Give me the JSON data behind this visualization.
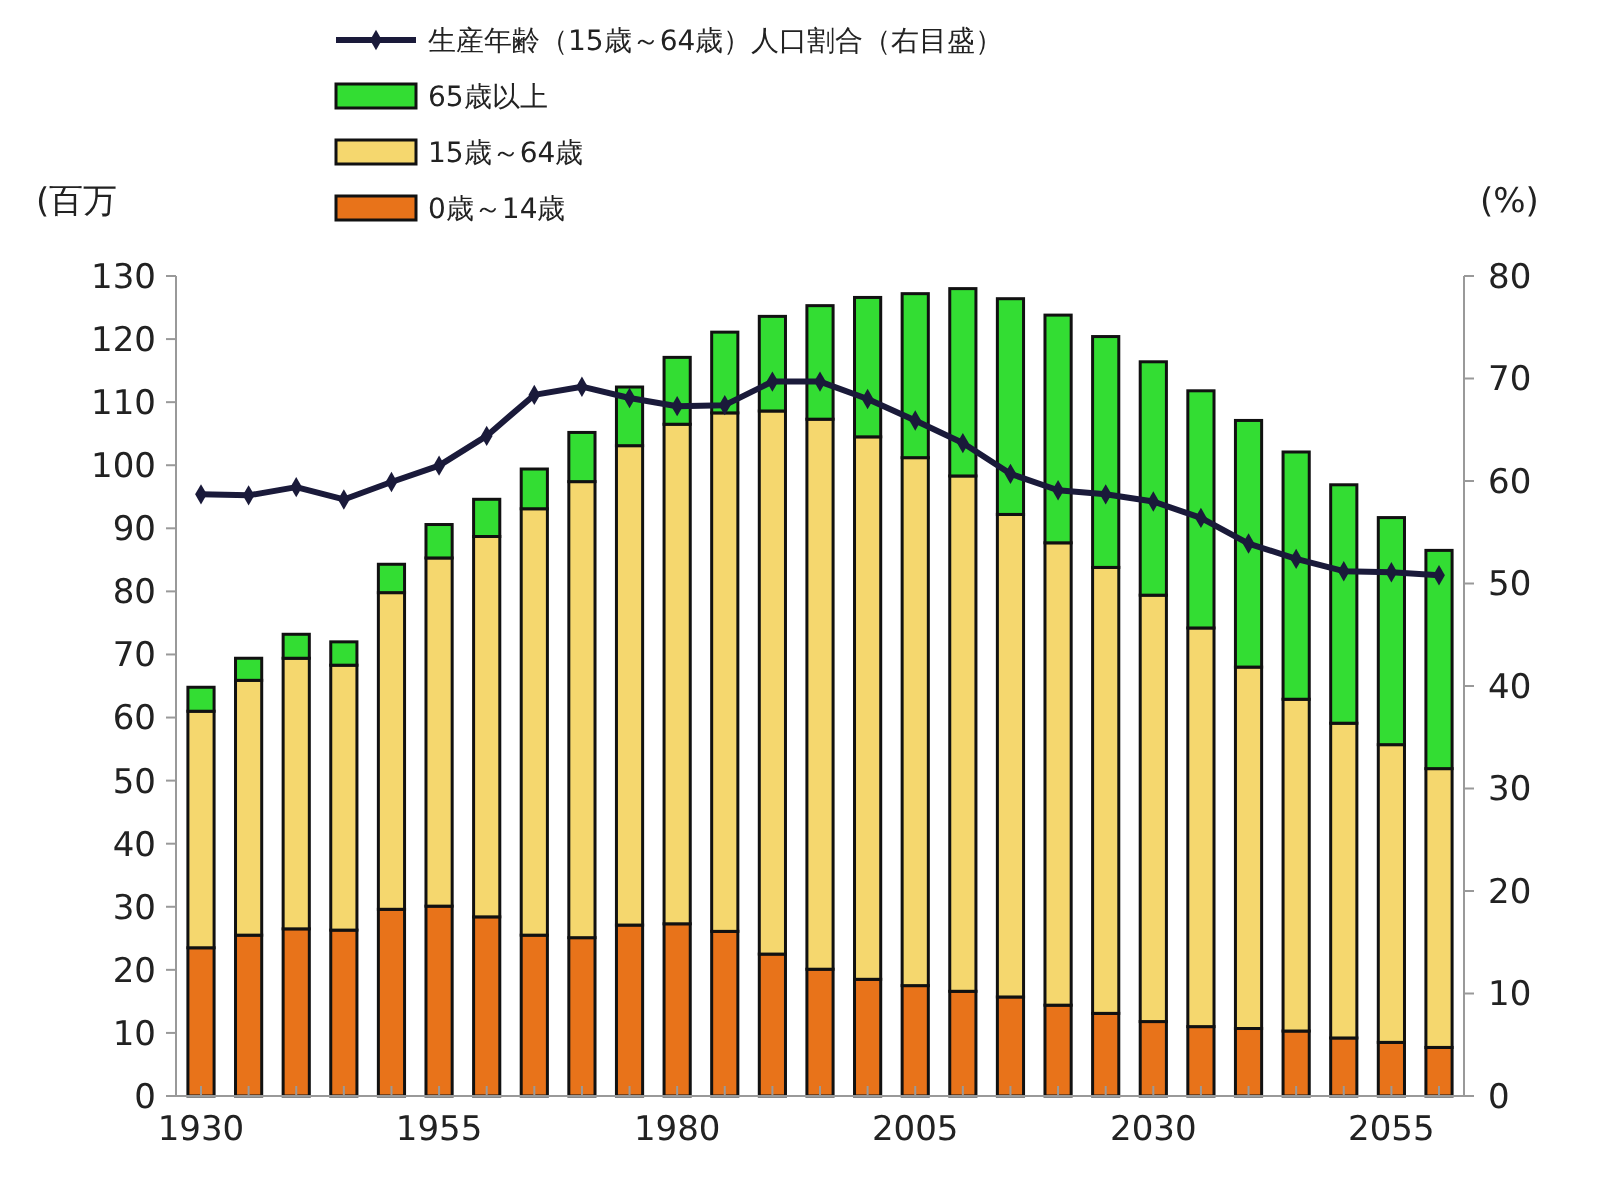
{
  "chart_data": {
    "type": "bar",
    "stacked": true,
    "ylabel": "(百万",
    "y2label": "(%)",
    "categories": [
      "1930",
      null,
      null,
      null,
      null,
      "1955",
      null,
      null,
      null,
      null,
      "1980",
      null,
      null,
      null,
      null,
      "2005",
      null,
      null,
      null,
      null,
      "2030",
      null,
      null,
      null,
      null,
      "2055",
      null
    ],
    "series": [
      {
        "name": "0歳～14歳",
        "color": "#e8731a",
        "values": [
          23.5,
          25.5,
          26.5,
          26.3,
          29.6,
          30.1,
          28.4,
          25.5,
          25.1,
          27.1,
          27.3,
          26.1,
          22.5,
          20.1,
          18.5,
          17.5,
          16.6,
          15.7,
          14.4,
          13.1,
          11.8,
          11.0,
          10.7,
          10.3,
          9.2,
          8.5,
          7.7
        ]
      },
      {
        "name": "15歳～64歳",
        "color": "#f5d76e",
        "values": [
          37.5,
          40.4,
          42.9,
          42.0,
          50.2,
          55.2,
          60.3,
          67.6,
          72.3,
          76.0,
          79.2,
          82.2,
          86.1,
          87.2,
          86.0,
          83.7,
          81.7,
          76.5,
          73.3,
          70.7,
          67.6,
          63.2,
          57.3,
          52.6,
          49.9,
          47.2,
          44.2
        ]
      },
      {
        "name": "65歳以上",
        "color": "#33dd33",
        "values": [
          3.8,
          3.5,
          3.8,
          3.7,
          4.5,
          5.3,
          5.9,
          6.3,
          7.8,
          9.3,
          10.6,
          12.8,
          15.0,
          18.0,
          22.1,
          26.0,
          29.7,
          34.2,
          36.1,
          36.6,
          37.0,
          37.6,
          39.1,
          39.2,
          37.8,
          36.0,
          34.6
        ]
      },
      {
        "name": "生産年齢（15歳～64歳）人口割合（右目盛）",
        "type": "line",
        "axis": "y2",
        "color": "#1a1a3a",
        "marker": "diamond",
        "values": [
          58.7,
          58.6,
          59.4,
          58.2,
          59.9,
          61.5,
          64.4,
          68.4,
          69.2,
          68.1,
          67.3,
          67.4,
          69.7,
          69.7,
          68.0,
          65.9,
          63.7,
          60.7,
          59.1,
          58.7,
          58.0,
          56.4,
          53.9,
          52.4,
          51.2,
          51.1,
          50.8
        ]
      }
    ],
    "ylim": [
      0,
      130
    ],
    "yticks": [
      0,
      10,
      20,
      30,
      40,
      50,
      60,
      70,
      80,
      90,
      100,
      110,
      120,
      130
    ],
    "y2lim": [
      0,
      80
    ],
    "y2ticks": [
      0,
      10,
      20,
      30,
      40,
      50,
      60,
      70,
      80
    ],
    "legend": "top left",
    "grid": false
  }
}
